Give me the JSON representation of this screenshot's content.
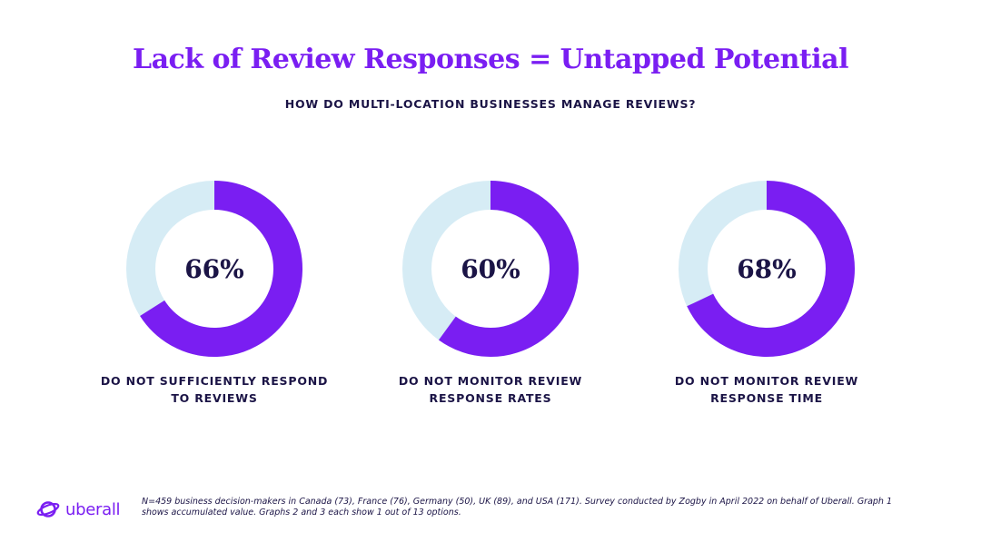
{
  "title": "Lack of Review Responses = Untapped Potential",
  "subtitle": "HOW DO MULTI-LOCATION BUSINESSES MANAGE REVIEWS?",
  "colors": {
    "accent": "#7a1ef2",
    "track": "#d6ecf5",
    "text": "#1b1446"
  },
  "chart_data": [
    {
      "type": "pie",
      "value": 66,
      "value_label": "66%",
      "label_lines": [
        "DO NOT SUFFICIENTLY RESPOND",
        "TO REVIEWS"
      ]
    },
    {
      "type": "pie",
      "value": 60,
      "value_label": "60%",
      "label_lines": [
        "DO NOT MONITOR REVIEW",
        "RESPONSE RATES"
      ]
    },
    {
      "type": "pie",
      "value": 68,
      "value_label": "68%",
      "label_lines": [
        "DO NOT MONITOR REVIEW",
        "RESPONSE TIME"
      ]
    }
  ],
  "logo": {
    "text": "uberall",
    "icon": "uberall-planet-icon"
  },
  "footnote": {
    "line1": "N=459 business decision-makers in Canada (73), France (76), Germany (50), UK (89), and USA (171). Survey conducted by Zogby in April 2022 on behalf of Uberall. Graph 1",
    "line2": "shows accumulated value. Graphs 2 and 3 each show 1 out of 13 options."
  }
}
